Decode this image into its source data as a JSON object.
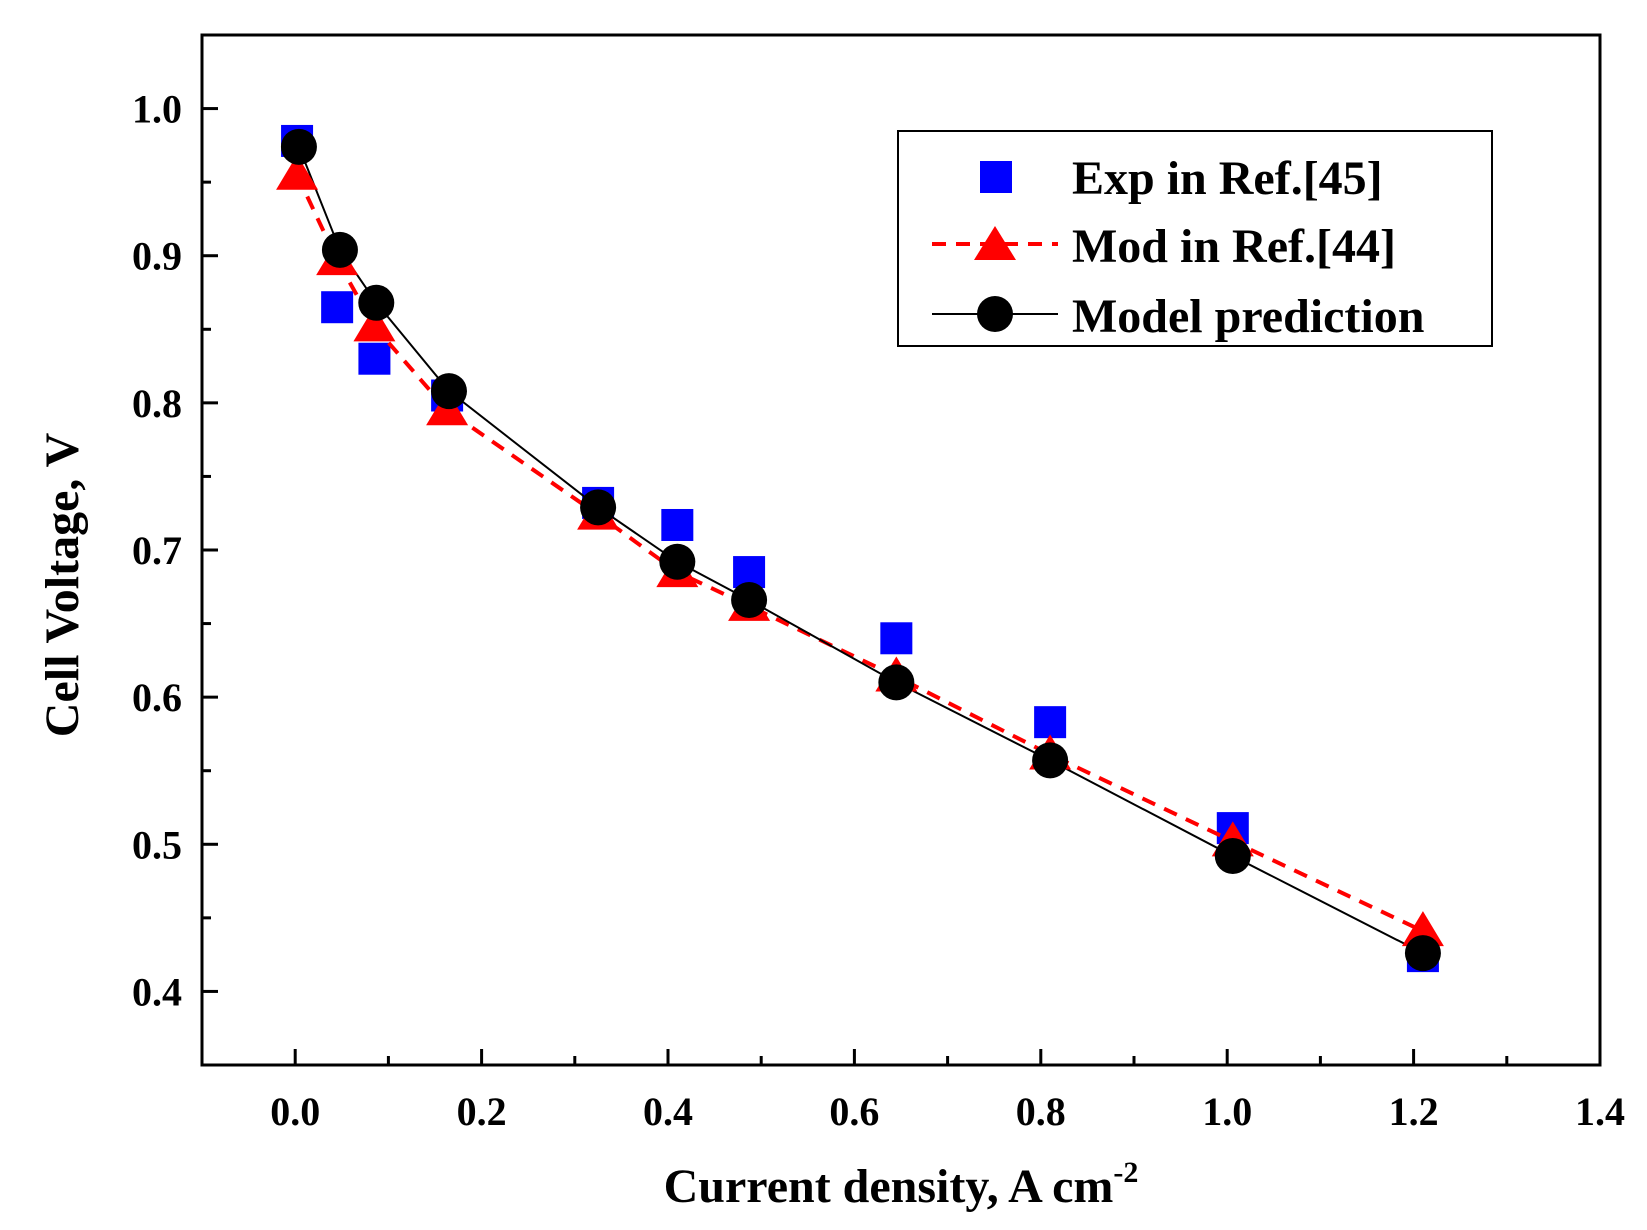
{
  "chart_data": {
    "type": "scatter",
    "title": "",
    "xlabel": "Current density, A cm",
    "xlabel_superscript": "-2",
    "ylabel": "Cell Voltage, V",
    "xlim": [
      -0.1,
      1.4
    ],
    "ylim": [
      0.35,
      1.05
    ],
    "x_ticks": [
      0.0,
      0.2,
      0.4,
      0.6,
      0.8,
      1.0,
      1.2,
      1.4
    ],
    "x_tick_labels": [
      "0.0",
      "0.2",
      "0.4",
      "0.6",
      "0.8",
      "1.0",
      "1.2",
      "1.4"
    ],
    "x_minor_ticks": [
      -0.1,
      0.1,
      0.3,
      0.5,
      0.7,
      0.9,
      1.1,
      1.3
    ],
    "y_ticks": [
      0.4,
      0.5,
      0.6,
      0.7,
      0.8,
      0.9,
      1.0
    ],
    "y_tick_labels": [
      "0.4",
      "0.5",
      "0.6",
      "0.7",
      "0.8",
      "0.9",
      "1.0"
    ],
    "y_minor_ticks": [
      0.45,
      0.55,
      0.65,
      0.75,
      0.85,
      0.95
    ],
    "grid": false,
    "legend_position": "top-right",
    "series": [
      {
        "name": "Exp in Ref.[45]",
        "marker": "square",
        "line": "none",
        "color": "#0000ff",
        "x": [
          0.002,
          0.045,
          0.085,
          0.163,
          0.325,
          0.41,
          0.487,
          0.645,
          0.81,
          1.006,
          1.21
        ],
        "y": [
          0.978,
          0.865,
          0.83,
          0.805,
          0.732,
          0.717,
          0.685,
          0.64,
          0.583,
          0.511,
          0.424
        ]
      },
      {
        "name": "Mod in Ref.[44]",
        "marker": "triangle",
        "line": "dashed",
        "color": "#ff0000",
        "x": [
          0.002,
          0.045,
          0.085,
          0.163,
          0.325,
          0.41,
          0.487,
          0.645,
          0.81,
          1.006,
          1.21
        ],
        "y": [
          0.955,
          0.897,
          0.852,
          0.795,
          0.724,
          0.685,
          0.662,
          0.614,
          0.561,
          0.502,
          0.441
        ]
      },
      {
        "name": "Model prediction",
        "marker": "circle",
        "line": "solid",
        "color": "#000000",
        "x": [
          0.004,
          0.048,
          0.087,
          0.165,
          0.325,
          0.41,
          0.487,
          0.645,
          0.81,
          1.006,
          1.21
        ],
        "y": [
          0.974,
          0.904,
          0.868,
          0.808,
          0.729,
          0.692,
          0.666,
          0.61,
          0.557,
          0.492,
          0.426
        ]
      }
    ]
  }
}
